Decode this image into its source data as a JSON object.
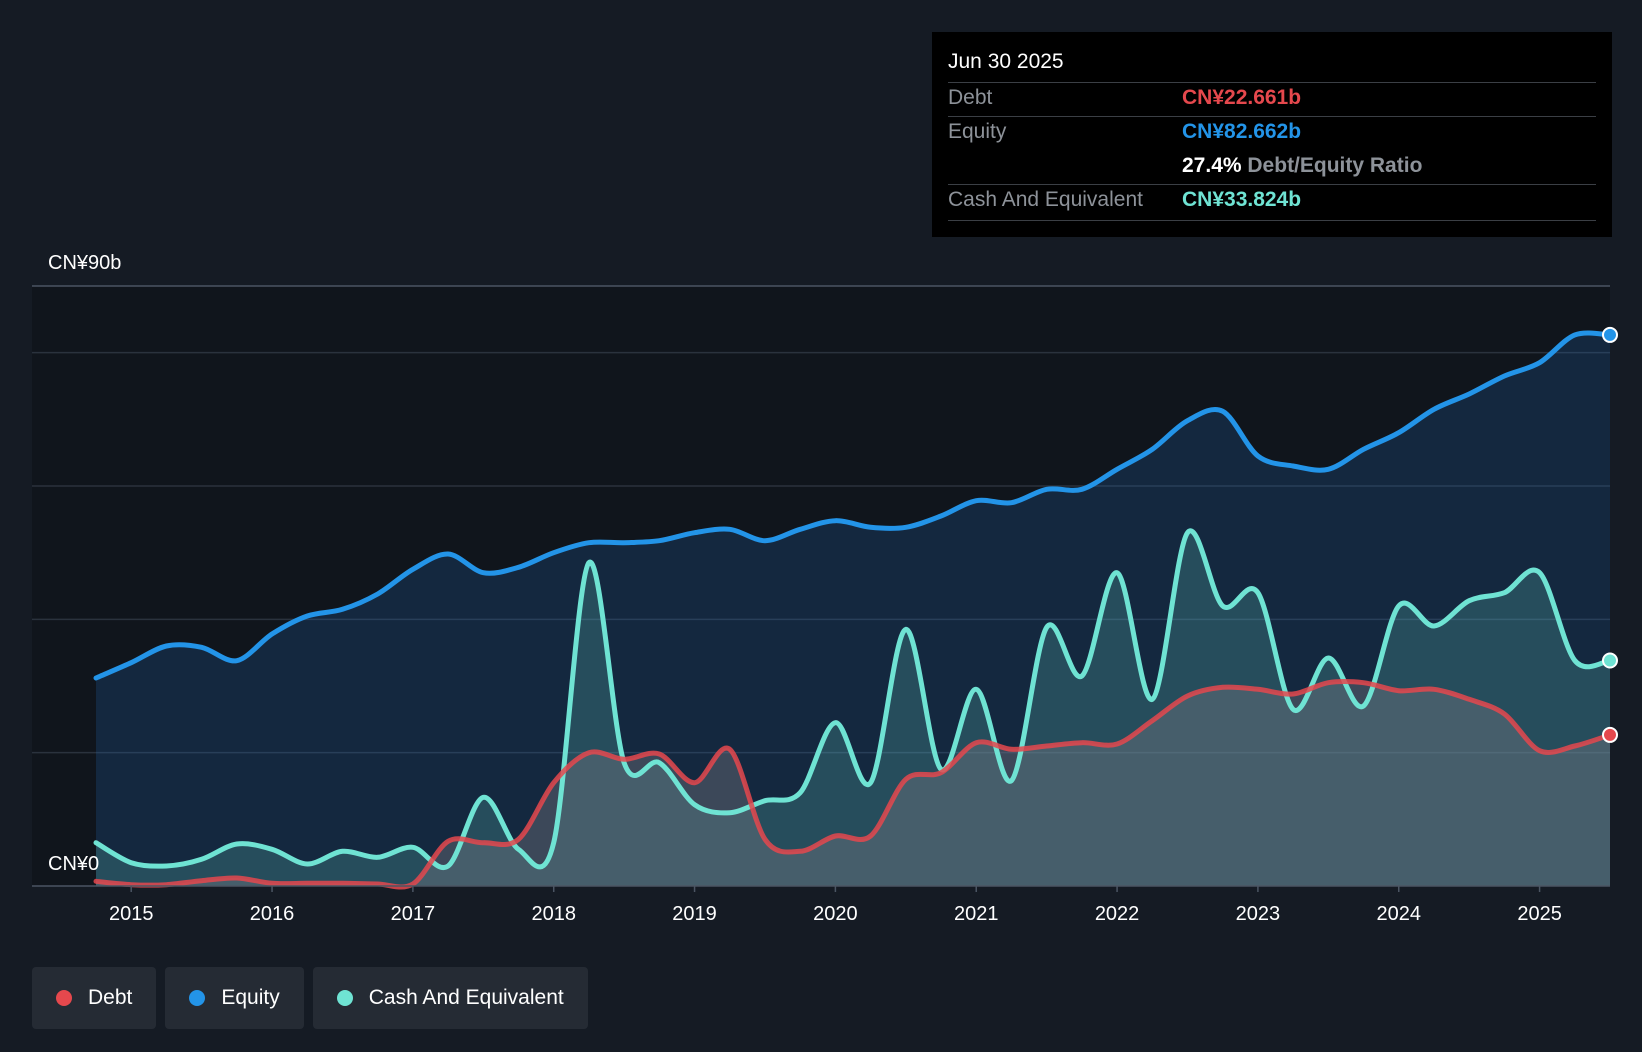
{
  "tooltip": {
    "date": "Jun 30 2025",
    "debt_label": "Debt",
    "debt_value": "CN¥22.661b",
    "equity_label": "Equity",
    "equity_value": "CN¥82.662b",
    "ratio_value": "27.4%",
    "ratio_label": "Debt/Equity Ratio",
    "cash_label": "Cash And Equivalent",
    "cash_value": "CN¥33.824b"
  },
  "legend": [
    {
      "label": "Debt",
      "color": "#e5484d"
    },
    {
      "label": "Equity",
      "color": "#2394e8"
    },
    {
      "label": "Cash And Equivalent",
      "color": "#6fe3d3"
    }
  ],
  "colors": {
    "debt": "#e5484d",
    "equity": "#2394e8",
    "cash": "#6fe3d3",
    "background": "#151b24"
  },
  "chart_data": {
    "type": "area",
    "y_top_label": "CN¥90b",
    "y_bottom_label": "CN¥0",
    "ylim": [
      0,
      90
    ],
    "xlim": [
      2014.75,
      2025.5
    ],
    "x_ticks": [
      "2015",
      "2016",
      "2017",
      "2018",
      "2019",
      "2020",
      "2021",
      "2022",
      "2023",
      "2024",
      "2025"
    ],
    "grid": true,
    "series": [
      {
        "name": "Debt",
        "points": [
          [
            2014.75,
            0.7
          ],
          [
            2015.0,
            0.2
          ],
          [
            2015.25,
            0.2
          ],
          [
            2015.5,
            0.8
          ],
          [
            2015.75,
            1.2
          ],
          [
            2016.0,
            0.4
          ],
          [
            2016.25,
            0.4
          ],
          [
            2016.5,
            0.4
          ],
          [
            2016.75,
            0.3
          ],
          [
            2017.0,
            0.3
          ],
          [
            2017.25,
            6.7
          ],
          [
            2017.5,
            6.5
          ],
          [
            2017.75,
            7.0
          ],
          [
            2018.0,
            15.5
          ],
          [
            2018.25,
            20.0
          ],
          [
            2018.5,
            19.0
          ],
          [
            2018.75,
            19.8
          ],
          [
            2019.0,
            15.5
          ],
          [
            2019.25,
            20.5
          ],
          [
            2019.5,
            7.0
          ],
          [
            2019.75,
            5.2
          ],
          [
            2020.0,
            7.5
          ],
          [
            2020.25,
            7.5
          ],
          [
            2020.5,
            16.0
          ],
          [
            2020.75,
            17.0
          ],
          [
            2021.0,
            21.5
          ],
          [
            2021.25,
            20.5
          ],
          [
            2021.5,
            21.0
          ],
          [
            2021.75,
            21.5
          ],
          [
            2022.0,
            21.3
          ],
          [
            2022.25,
            24.8
          ],
          [
            2022.5,
            28.5
          ],
          [
            2022.75,
            29.8
          ],
          [
            2023.0,
            29.5
          ],
          [
            2023.25,
            28.8
          ],
          [
            2023.5,
            30.5
          ],
          [
            2023.75,
            30.5
          ],
          [
            2024.0,
            29.3
          ],
          [
            2024.25,
            29.5
          ],
          [
            2024.5,
            28.0
          ],
          [
            2024.75,
            25.8
          ],
          [
            2025.0,
            20.3
          ],
          [
            2025.25,
            21.0
          ],
          [
            2025.5,
            22.661
          ]
        ]
      },
      {
        "name": "Equity",
        "points": [
          [
            2014.75,
            31.2
          ],
          [
            2015.0,
            33.5
          ],
          [
            2015.25,
            36.0
          ],
          [
            2015.5,
            35.8
          ],
          [
            2015.75,
            33.8
          ],
          [
            2016.0,
            37.8
          ],
          [
            2016.25,
            40.5
          ],
          [
            2016.5,
            41.5
          ],
          [
            2016.75,
            43.8
          ],
          [
            2017.0,
            47.5
          ],
          [
            2017.25,
            49.8
          ],
          [
            2017.5,
            47.0
          ],
          [
            2017.75,
            47.8
          ],
          [
            2018.0,
            50.0
          ],
          [
            2018.25,
            51.5
          ],
          [
            2018.5,
            51.5
          ],
          [
            2018.75,
            51.8
          ],
          [
            2019.0,
            53.0
          ],
          [
            2019.25,
            53.5
          ],
          [
            2019.5,
            51.8
          ],
          [
            2019.75,
            53.5
          ],
          [
            2020.0,
            54.8
          ],
          [
            2020.25,
            53.8
          ],
          [
            2020.5,
            53.8
          ],
          [
            2020.75,
            55.5
          ],
          [
            2021.0,
            57.8
          ],
          [
            2021.25,
            57.5
          ],
          [
            2021.5,
            59.5
          ],
          [
            2021.75,
            59.5
          ],
          [
            2022.0,
            62.5
          ],
          [
            2022.25,
            65.5
          ],
          [
            2022.5,
            69.8
          ],
          [
            2022.75,
            71.2
          ],
          [
            2023.0,
            64.5
          ],
          [
            2023.25,
            63.0
          ],
          [
            2023.5,
            62.5
          ],
          [
            2023.75,
            65.5
          ],
          [
            2024.0,
            68.0
          ],
          [
            2024.25,
            71.5
          ],
          [
            2024.5,
            73.8
          ],
          [
            2024.75,
            76.5
          ],
          [
            2025.0,
            78.5
          ],
          [
            2025.25,
            82.662
          ],
          [
            2025.5,
            82.662
          ]
        ]
      },
      {
        "name": "Cash And Equivalent",
        "points": [
          [
            2014.75,
            6.5
          ],
          [
            2015.0,
            3.5
          ],
          [
            2015.25,
            3.0
          ],
          [
            2015.5,
            4.0
          ],
          [
            2015.75,
            6.3
          ],
          [
            2016.0,
            5.5
          ],
          [
            2016.25,
            3.3
          ],
          [
            2016.5,
            5.2
          ],
          [
            2016.75,
            4.3
          ],
          [
            2017.0,
            5.8
          ],
          [
            2017.25,
            3.0
          ],
          [
            2017.5,
            13.3
          ],
          [
            2017.75,
            5.5
          ],
          [
            2018.0,
            6.5
          ],
          [
            2018.25,
            48.5
          ],
          [
            2018.5,
            18.5
          ],
          [
            2018.75,
            18.5
          ],
          [
            2019.0,
            12.2
          ],
          [
            2019.25,
            11.0
          ],
          [
            2019.5,
            12.8
          ],
          [
            2019.75,
            14.0
          ],
          [
            2020.0,
            24.5
          ],
          [
            2020.25,
            15.5
          ],
          [
            2020.5,
            38.5
          ],
          [
            2020.75,
            17.5
          ],
          [
            2021.0,
            29.5
          ],
          [
            2021.25,
            15.8
          ],
          [
            2021.5,
            38.8
          ],
          [
            2021.75,
            31.5
          ],
          [
            2022.0,
            47.0
          ],
          [
            2022.25,
            28.0
          ],
          [
            2022.5,
            53.0
          ],
          [
            2022.75,
            42.0
          ],
          [
            2023.0,
            44.0
          ],
          [
            2023.25,
            26.5
          ],
          [
            2023.5,
            34.2
          ],
          [
            2023.75,
            27.0
          ],
          [
            2024.0,
            42.0
          ],
          [
            2024.25,
            39.0
          ],
          [
            2024.5,
            42.8
          ],
          [
            2024.75,
            44.0
          ],
          [
            2025.0,
            47.0
          ],
          [
            2025.25,
            33.824
          ],
          [
            2025.5,
            33.824
          ]
        ]
      }
    ]
  }
}
